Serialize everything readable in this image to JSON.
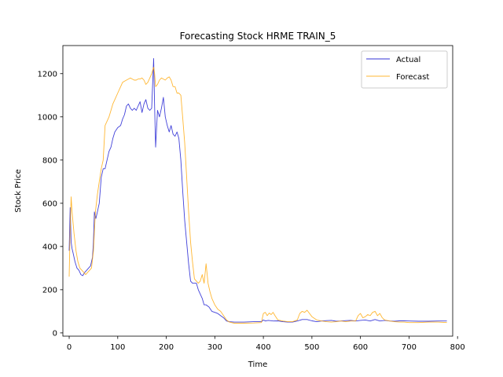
{
  "chart_data": {
    "type": "line",
    "title": "Forecasting Stock HRME TRAIN_5",
    "xlabel": "Time",
    "ylabel": "Stock Price",
    "xlim": [
      -13,
      790
    ],
    "ylim": [
      -15,
      1330
    ],
    "xticks": [
      0,
      100,
      200,
      300,
      400,
      500,
      600,
      700,
      800
    ],
    "yticks": [
      0,
      200,
      400,
      600,
      800,
      1000,
      1200
    ],
    "grid": false,
    "legend": {
      "placement": "top-right"
    },
    "series": [
      {
        "name": "Actual",
        "color": "#0000cc",
        "points": [
          [
            0,
            380
          ],
          [
            2,
            580
          ],
          [
            4,
            420
          ],
          [
            6,
            390
          ],
          [
            8,
            370
          ],
          [
            12,
            330
          ],
          [
            16,
            300
          ],
          [
            20,
            290
          ],
          [
            24,
            270
          ],
          [
            28,
            265
          ],
          [
            32,
            280
          ],
          [
            36,
            290
          ],
          [
            40,
            300
          ],
          [
            44,
            310
          ],
          [
            48,
            350
          ],
          [
            50,
            420
          ],
          [
            52,
            560
          ],
          [
            55,
            530
          ],
          [
            58,
            560
          ],
          [
            62,
            600
          ],
          [
            66,
            720
          ],
          [
            70,
            760
          ],
          [
            74,
            760
          ],
          [
            78,
            800
          ],
          [
            82,
            840
          ],
          [
            86,
            860
          ],
          [
            90,
            900
          ],
          [
            94,
            930
          ],
          [
            100,
            950
          ],
          [
            106,
            960
          ],
          [
            110,
            990
          ],
          [
            114,
            1010
          ],
          [
            118,
            1050
          ],
          [
            122,
            1060
          ],
          [
            126,
            1040
          ],
          [
            130,
            1030
          ],
          [
            134,
            1040
          ],
          [
            138,
            1030
          ],
          [
            142,
            1050
          ],
          [
            146,
            1070
          ],
          [
            150,
            1020
          ],
          [
            154,
            1060
          ],
          [
            158,
            1080
          ],
          [
            162,
            1040
          ],
          [
            166,
            1030
          ],
          [
            170,
            1040
          ],
          [
            174,
            1270
          ],
          [
            176,
            1050
          ],
          [
            178,
            860
          ],
          [
            182,
            1030
          ],
          [
            186,
            1000
          ],
          [
            190,
            1040
          ],
          [
            194,
            1090
          ],
          [
            198,
            1000
          ],
          [
            202,
            960
          ],
          [
            206,
            930
          ],
          [
            210,
            960
          ],
          [
            214,
            920
          ],
          [
            218,
            910
          ],
          [
            222,
            930
          ],
          [
            226,
            900
          ],
          [
            230,
            800
          ],
          [
            234,
            650
          ],
          [
            238,
            520
          ],
          [
            242,
            420
          ],
          [
            246,
            320
          ],
          [
            250,
            240
          ],
          [
            254,
            230
          ],
          [
            258,
            230
          ],
          [
            262,
            230
          ],
          [
            266,
            200
          ],
          [
            270,
            180
          ],
          [
            274,
            160
          ],
          [
            278,
            130
          ],
          [
            282,
            130
          ],
          [
            288,
            120
          ],
          [
            294,
            100
          ],
          [
            300,
            95
          ],
          [
            306,
            90
          ],
          [
            312,
            80
          ],
          [
            318,
            70
          ],
          [
            324,
            55
          ],
          [
            330,
            52
          ],
          [
            340,
            50
          ],
          [
            360,
            50
          ],
          [
            380,
            52
          ],
          [
            396,
            52
          ],
          [
            400,
            60
          ],
          [
            404,
            55
          ],
          [
            410,
            58
          ],
          [
            420,
            55
          ],
          [
            430,
            56
          ],
          [
            440,
            52
          ],
          [
            450,
            50
          ],
          [
            460,
            50
          ],
          [
            470,
            55
          ],
          [
            480,
            62
          ],
          [
            490,
            62
          ],
          [
            500,
            56
          ],
          [
            510,
            52
          ],
          [
            520,
            55
          ],
          [
            530,
            57
          ],
          [
            540,
            58
          ],
          [
            550,
            54
          ],
          [
            560,
            55
          ],
          [
            570,
            57
          ],
          [
            580,
            58
          ],
          [
            590,
            55
          ],
          [
            600,
            58
          ],
          [
            610,
            60
          ],
          [
            620,
            55
          ],
          [
            630,
            62
          ],
          [
            640,
            55
          ],
          [
            650,
            58
          ],
          [
            660,
            55
          ],
          [
            670,
            54
          ],
          [
            680,
            56
          ],
          [
            690,
            56
          ],
          [
            700,
            55
          ],
          [
            720,
            54
          ],
          [
            740,
            54
          ],
          [
            760,
            55
          ],
          [
            778,
            55
          ]
        ]
      },
      {
        "name": "Forecast",
        "color": "#ffa500",
        "points": [
          [
            0,
            260
          ],
          [
            2,
            480
          ],
          [
            4,
            630
          ],
          [
            6,
            560
          ],
          [
            10,
            460
          ],
          [
            14,
            380
          ],
          [
            18,
            330
          ],
          [
            22,
            300
          ],
          [
            26,
            290
          ],
          [
            30,
            280
          ],
          [
            34,
            270
          ],
          [
            38,
            280
          ],
          [
            42,
            290
          ],
          [
            46,
            300
          ],
          [
            50,
            380
          ],
          [
            54,
            560
          ],
          [
            58,
            640
          ],
          [
            62,
            700
          ],
          [
            66,
            760
          ],
          [
            70,
            800
          ],
          [
            74,
            960
          ],
          [
            78,
            980
          ],
          [
            82,
            1000
          ],
          [
            86,
            1030
          ],
          [
            90,
            1060
          ],
          [
            94,
            1080
          ],
          [
            100,
            1110
          ],
          [
            106,
            1140
          ],
          [
            110,
            1160
          ],
          [
            114,
            1165
          ],
          [
            118,
            1170
          ],
          [
            122,
            1175
          ],
          [
            126,
            1180
          ],
          [
            130,
            1175
          ],
          [
            134,
            1170
          ],
          [
            138,
            1170
          ],
          [
            142,
            1175
          ],
          [
            146,
            1175
          ],
          [
            150,
            1180
          ],
          [
            154,
            1170
          ],
          [
            158,
            1150
          ],
          [
            162,
            1160
          ],
          [
            166,
            1180
          ],
          [
            170,
            1200
          ],
          [
            174,
            1230
          ],
          [
            176,
            1200
          ],
          [
            178,
            1140
          ],
          [
            182,
            1150
          ],
          [
            186,
            1170
          ],
          [
            190,
            1180
          ],
          [
            194,
            1175
          ],
          [
            198,
            1170
          ],
          [
            202,
            1180
          ],
          [
            206,
            1185
          ],
          [
            210,
            1170
          ],
          [
            214,
            1140
          ],
          [
            218,
            1140
          ],
          [
            222,
            1110
          ],
          [
            226,
            1110
          ],
          [
            230,
            1100
          ],
          [
            234,
            990
          ],
          [
            238,
            880
          ],
          [
            242,
            720
          ],
          [
            246,
            560
          ],
          [
            250,
            420
          ],
          [
            254,
            330
          ],
          [
            258,
            250
          ],
          [
            262,
            240
          ],
          [
            266,
            230
          ],
          [
            270,
            240
          ],
          [
            274,
            270
          ],
          [
            278,
            230
          ],
          [
            282,
            320
          ],
          [
            286,
            230
          ],
          [
            290,
            190
          ],
          [
            294,
            160
          ],
          [
            300,
            130
          ],
          [
            306,
            110
          ],
          [
            312,
            100
          ],
          [
            318,
            80
          ],
          [
            324,
            60
          ],
          [
            330,
            50
          ],
          [
            340,
            45
          ],
          [
            360,
            45
          ],
          [
            380,
            46
          ],
          [
            396,
            48
          ],
          [
            400,
            90
          ],
          [
            404,
            95
          ],
          [
            408,
            80
          ],
          [
            412,
            92
          ],
          [
            416,
            85
          ],
          [
            420,
            95
          ],
          [
            424,
            80
          ],
          [
            430,
            60
          ],
          [
            440,
            55
          ],
          [
            450,
            52
          ],
          [
            460,
            52
          ],
          [
            470,
            60
          ],
          [
            475,
            90
          ],
          [
            480,
            100
          ],
          [
            485,
            95
          ],
          [
            490,
            105
          ],
          [
            495,
            90
          ],
          [
            500,
            75
          ],
          [
            510,
            60
          ],
          [
            520,
            55
          ],
          [
            530,
            52
          ],
          [
            540,
            50
          ],
          [
            550,
            52
          ],
          [
            560,
            55
          ],
          [
            570,
            52
          ],
          [
            580,
            55
          ],
          [
            590,
            55
          ],
          [
            595,
            80
          ],
          [
            600,
            90
          ],
          [
            605,
            70
          ],
          [
            610,
            75
          ],
          [
            615,
            85
          ],
          [
            620,
            80
          ],
          [
            625,
            95
          ],
          [
            630,
            100
          ],
          [
            635,
            80
          ],
          [
            640,
            90
          ],
          [
            645,
            70
          ],
          [
            650,
            60
          ],
          [
            660,
            55
          ],
          [
            670,
            52
          ],
          [
            680,
            50
          ],
          [
            690,
            50
          ],
          [
            700,
            48
          ],
          [
            720,
            48
          ],
          [
            740,
            50
          ],
          [
            760,
            50
          ],
          [
            778,
            48
          ]
        ]
      }
    ]
  }
}
